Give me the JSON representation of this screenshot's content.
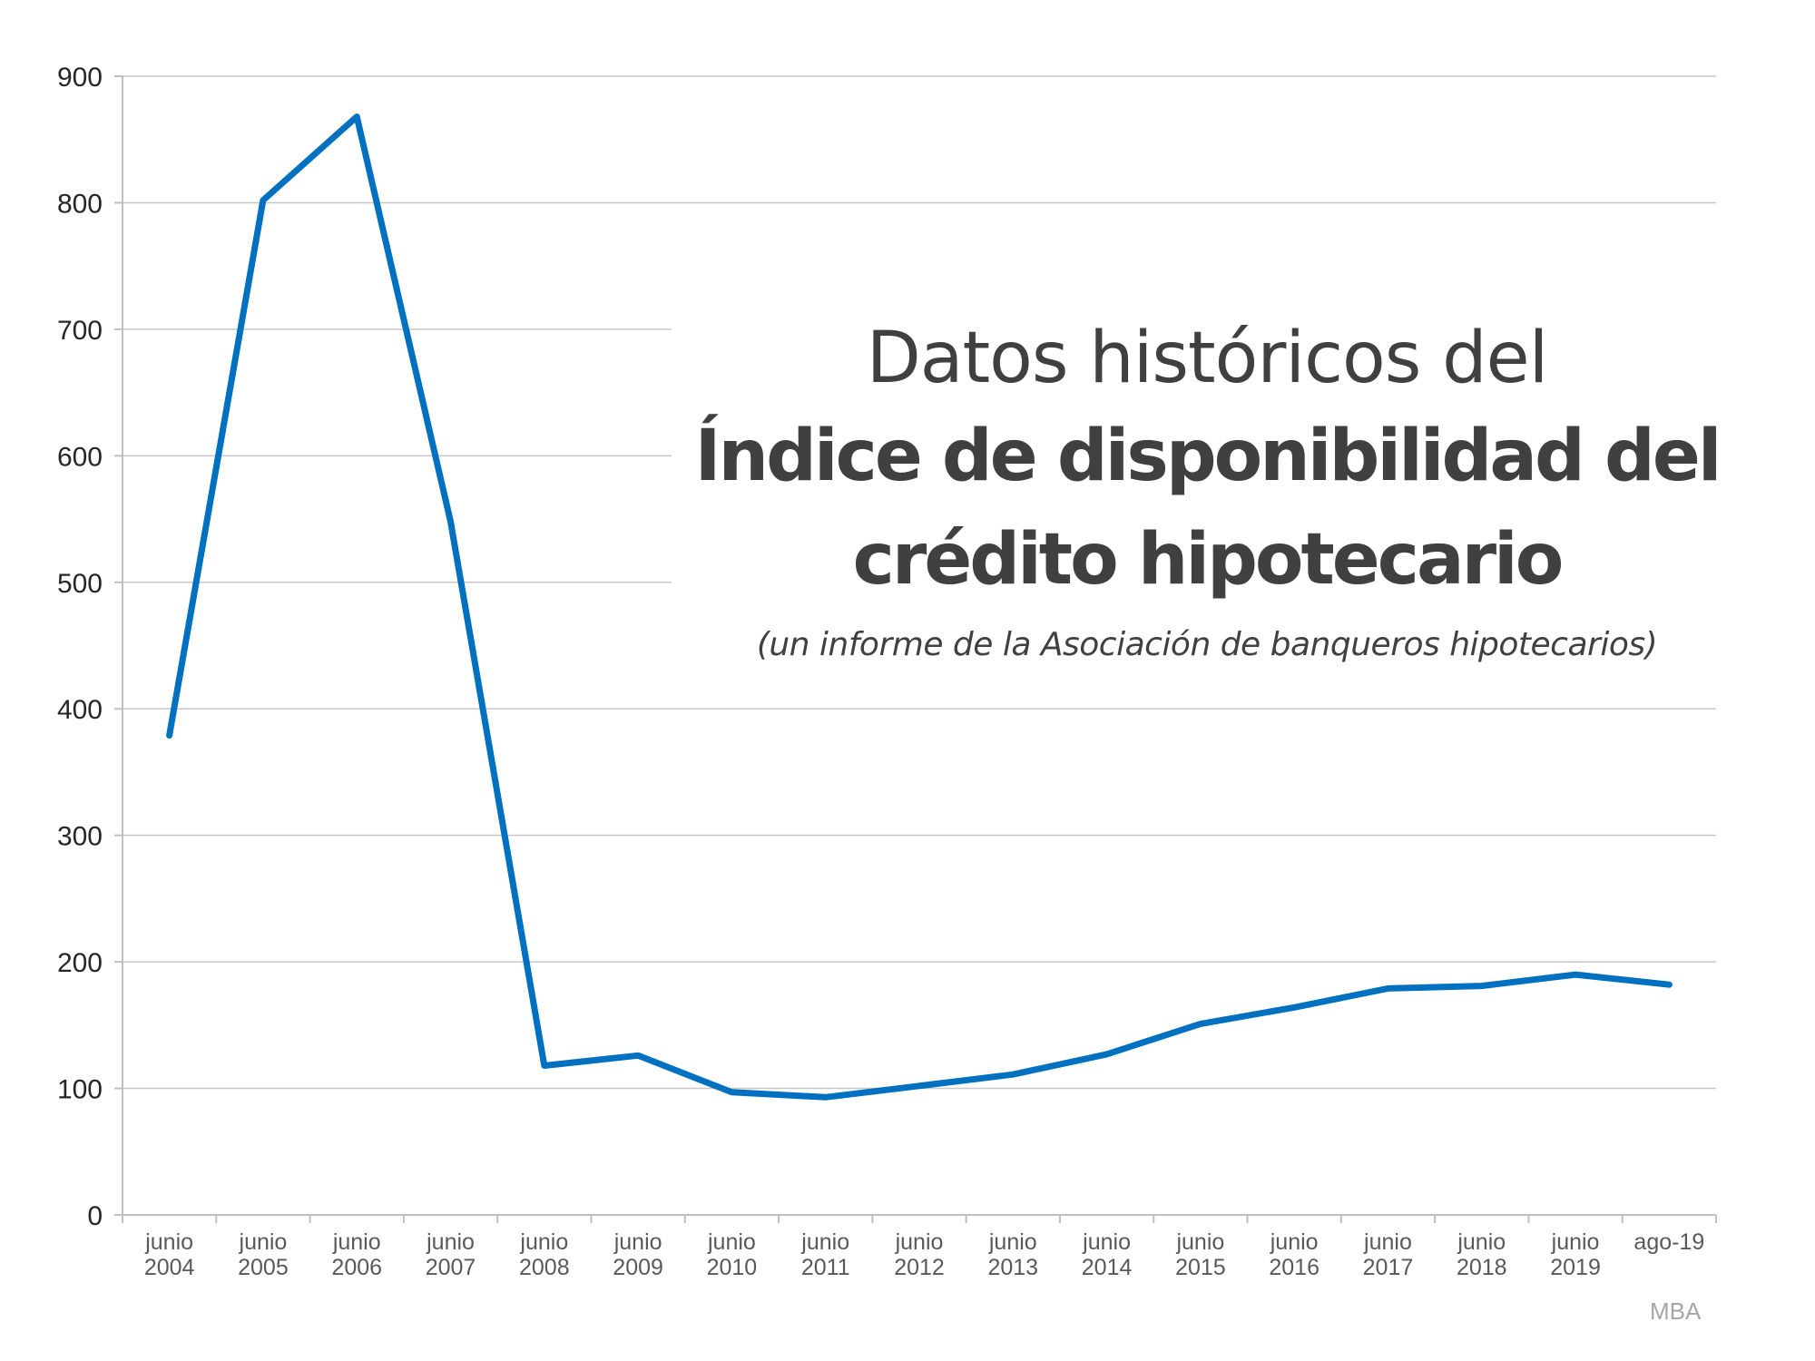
{
  "title": {
    "line1": "Datos históricos del",
    "line2": "Índice de disponibilidad del",
    "line3": "crédito hipotecario",
    "subtitle": "(un informe de la Asociación de banqueros hipotecarios)"
  },
  "source": "MBA",
  "colors": {
    "series": "#0070c0",
    "text": "#404040",
    "grid": "#c8c8c8",
    "source": "#a6a6a6"
  },
  "chart_data": {
    "type": "line",
    "title": "Datos históricos del Índice de disponibilidad del crédito hipotecario",
    "subtitle": "(un informe de la Asociación de banqueros hipotecarios)",
    "xlabel": "",
    "ylabel": "",
    "ylim": [
      0,
      900
    ],
    "yticks": [
      0,
      100,
      200,
      300,
      400,
      500,
      600,
      700,
      800,
      900
    ],
    "grid": true,
    "legend": "none",
    "categories": [
      [
        "junio",
        "2004"
      ],
      [
        "junio",
        "2005"
      ],
      [
        "junio",
        "2006"
      ],
      [
        "junio",
        "2007"
      ],
      [
        "junio",
        "2008"
      ],
      [
        "junio",
        "2009"
      ],
      [
        "junio",
        "2010"
      ],
      [
        "junio",
        "2011"
      ],
      [
        "junio",
        "2012"
      ],
      [
        "junio",
        "2013"
      ],
      [
        "junio",
        "2014"
      ],
      [
        "junio",
        "2015"
      ],
      [
        "junio",
        "2016"
      ],
      [
        "junio",
        "2017"
      ],
      [
        "junio",
        "2018"
      ],
      [
        "junio",
        "2019"
      ],
      [
        "ago-19",
        ""
      ]
    ],
    "series": [
      {
        "name": "Índice de disponibilidad del crédito hipotecario",
        "color": "#0070c0",
        "values": [
          379,
          802,
          868,
          548,
          118,
          126,
          97,
          93,
          102,
          111,
          127,
          151,
          164,
          179,
          181,
          190,
          182
        ]
      }
    ],
    "source": "MBA"
  }
}
